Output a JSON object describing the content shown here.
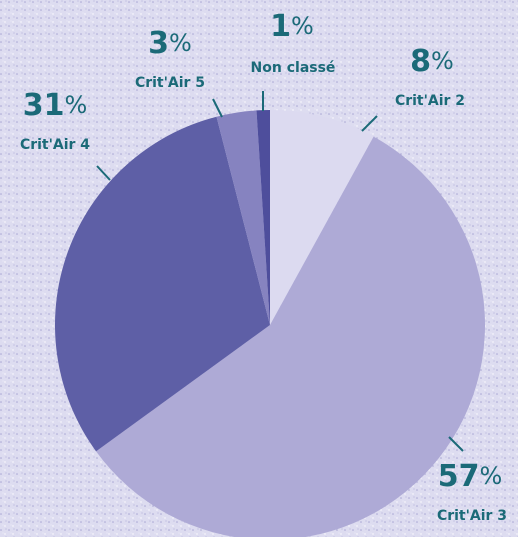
{
  "chart_data": {
    "type": "pie",
    "categories": [
      "Crit'Air 2",
      "Crit'Air 3",
      "Crit'Air 4",
      "Crit'Air 5",
      "Non classé"
    ],
    "values": [
      8,
      57,
      31,
      3,
      1
    ],
    "value_labels": [
      "8%",
      "57%",
      "31%",
      "3%",
      "1%"
    ],
    "colors": [
      "#dcdaf0",
      "#aeaad6",
      "#5e5fa6",
      "#8683c0",
      "#4e4e9c"
    ]
  }
}
